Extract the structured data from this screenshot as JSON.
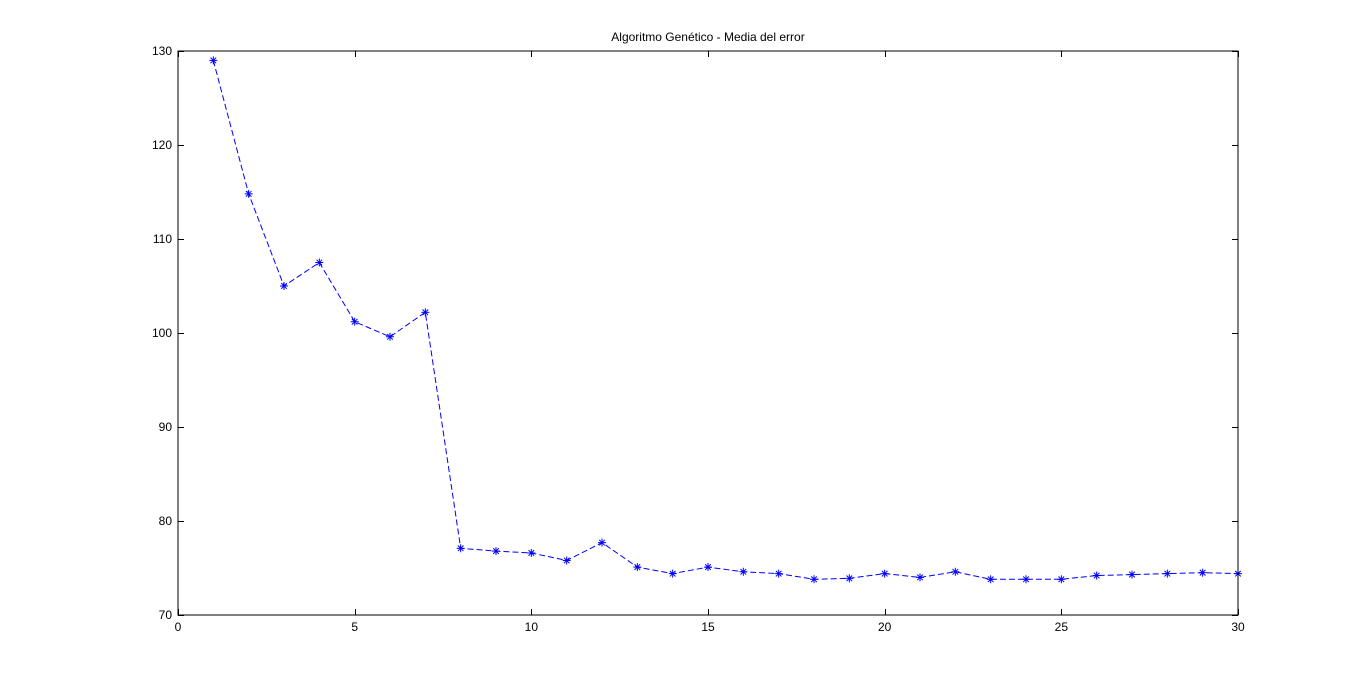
{
  "chart_data": {
    "type": "line",
    "title": "Algoritmo Genético - Media del error",
    "xlabel": "",
    "ylabel": "",
    "xlim": [
      0,
      30
    ],
    "ylim": [
      70,
      130
    ],
    "xticks": [
      0,
      5,
      10,
      15,
      20,
      25,
      30
    ],
    "yticks": [
      70,
      80,
      90,
      100,
      110,
      120,
      130
    ],
    "grid": false,
    "legend": "none",
    "series": [
      {
        "color": "#0000ff",
        "line_style": "dashed",
        "marker": "asterisk",
        "x": [
          1,
          2,
          3,
          4,
          5,
          6,
          7,
          8,
          9,
          10,
          11,
          12,
          13,
          14,
          15,
          16,
          17,
          18,
          19,
          20,
          21,
          22,
          23,
          24,
          25,
          26,
          27,
          28,
          29,
          30
        ],
        "y": [
          129,
          114.8,
          105,
          107.5,
          101.2,
          99.6,
          102.2,
          77.1,
          76.8,
          76.6,
          75.8,
          77.7,
          75.1,
          74.4,
          75.1,
          74.6,
          74.4,
          73.8,
          73.9,
          74.4,
          74.0,
          74.6,
          73.8,
          73.8,
          73.8,
          74.2,
          74.3,
          74.4,
          74.5,
          74.4
        ]
      }
    ]
  }
}
